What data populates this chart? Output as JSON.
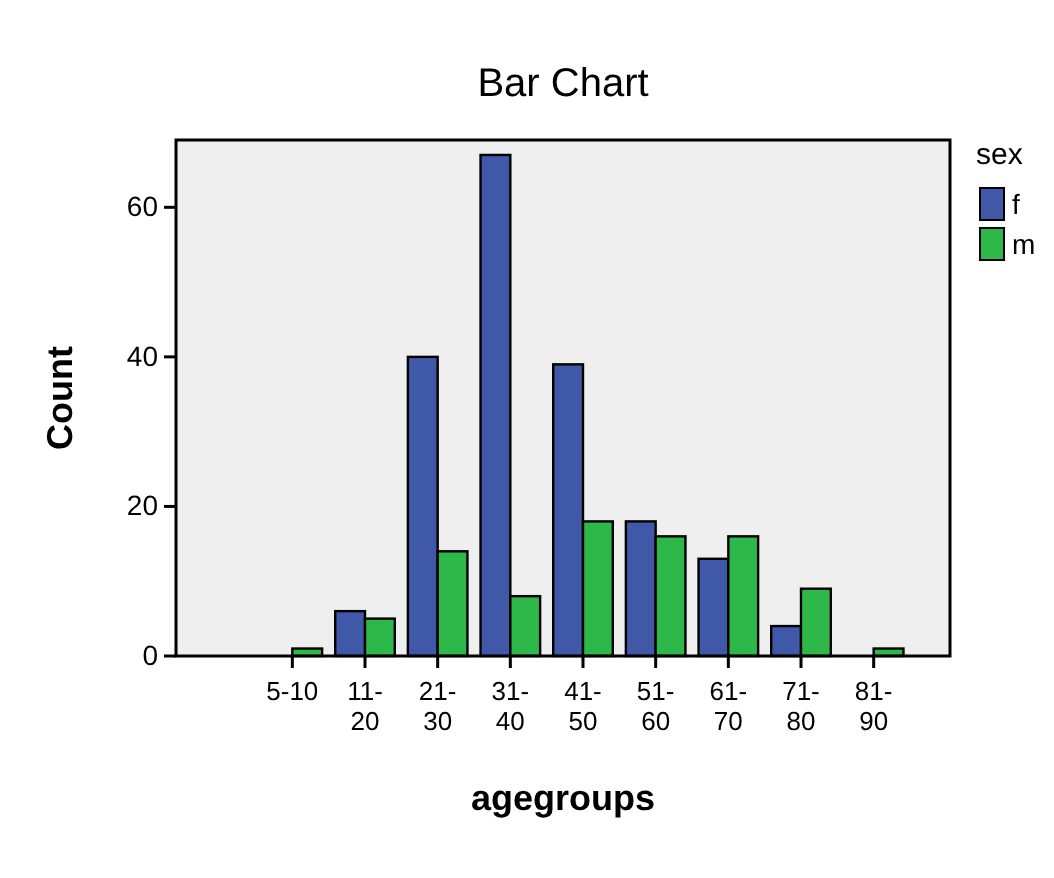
{
  "chart_data": {
    "type": "bar",
    "title": "Bar Chart",
    "xlabel": "agegroups",
    "ylabel": "Count",
    "legend_title": "sex",
    "categories": [
      "5-10",
      "11-20",
      "21-30",
      "31-40",
      "41-50",
      "51-60",
      "61-70",
      "71-80",
      "81-90"
    ],
    "series": [
      {
        "name": "f",
        "color": "#3f58a8",
        "values": [
          0,
          6,
          40,
          67,
          39,
          18,
          13,
          4,
          0
        ]
      },
      {
        "name": "m",
        "color": "#2eb84a",
        "values": [
          1,
          5,
          14,
          8,
          18,
          16,
          16,
          9,
          1
        ]
      }
    ],
    "ylim": [
      0,
      69
    ],
    "yticks": [
      0,
      20,
      40,
      60
    ],
    "grid": false,
    "legend": "right"
  }
}
